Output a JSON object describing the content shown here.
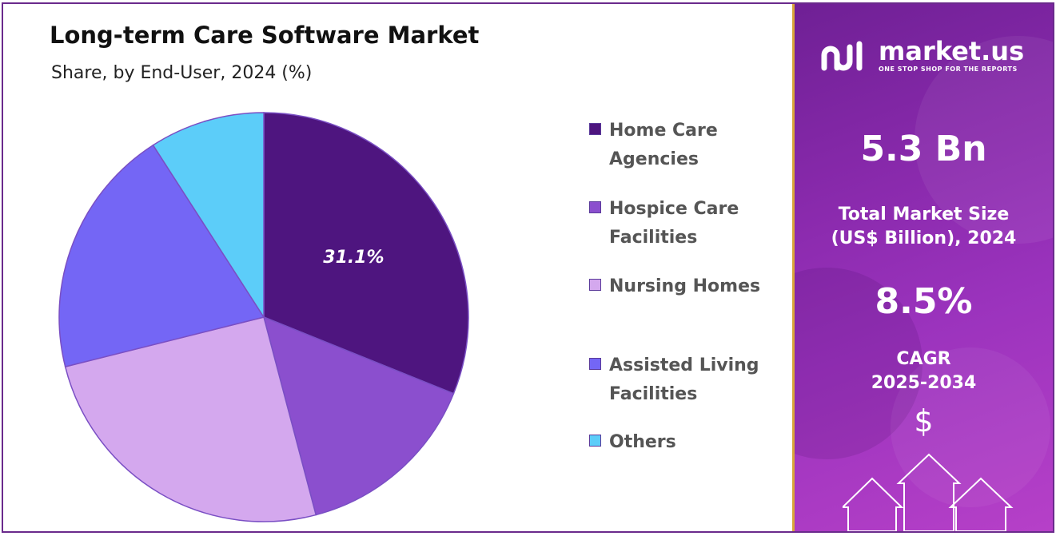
{
  "chart": {
    "title": "Long-term Care Software Market",
    "subtitle": "Share, by End-User, 2024 (%)"
  },
  "chart_data": {
    "type": "pie",
    "title": "Long-term Care Software Market",
    "subtitle": "Share, by End-User, 2024 (%)",
    "categories": [
      "Home Care Agencies",
      "Hospice Care Facilities",
      "Nursing Homes",
      "Assisted Living Facilities",
      "Others"
    ],
    "values": [
      31.1,
      14.8,
      25.2,
      19.8,
      9.1
    ],
    "colors": [
      "#4e157f",
      "#8b4fce",
      "#d4a8ee",
      "#7466f5",
      "#5ccdf9"
    ],
    "data_labels": [
      "31.1%",
      null,
      null,
      null,
      null
    ],
    "legend": {
      "position": "right",
      "entries": [
        {
          "label": "Home Care\nAgencies",
          "color": "#4e157f"
        },
        {
          "label": "Hospice Care\nFacilities",
          "color": "#8b4fce"
        },
        {
          "label": "Nursing Homes",
          "color": "#d4a8ee"
        },
        {
          "label": "Assisted Living\nFacilities",
          "color": "#7466f5"
        },
        {
          "label": "Others",
          "color": "#5ccdf9"
        }
      ]
    }
  },
  "side_panel": {
    "brand": {
      "name": "market.us",
      "tagline": "ONE STOP SHOP FOR THE REPORTS",
      "icon": "market-us-logo-icon"
    },
    "market_size_value": "5.3 Bn",
    "market_size_caption": "Total Market Size\n(US$ Billion), 2024",
    "cagr_value": "8.5%",
    "cagr_caption": "CAGR\n2025-2034",
    "currency_symbol": "$",
    "icon": "growth-arrows-icon",
    "accent_color": "#d9a63a"
  }
}
